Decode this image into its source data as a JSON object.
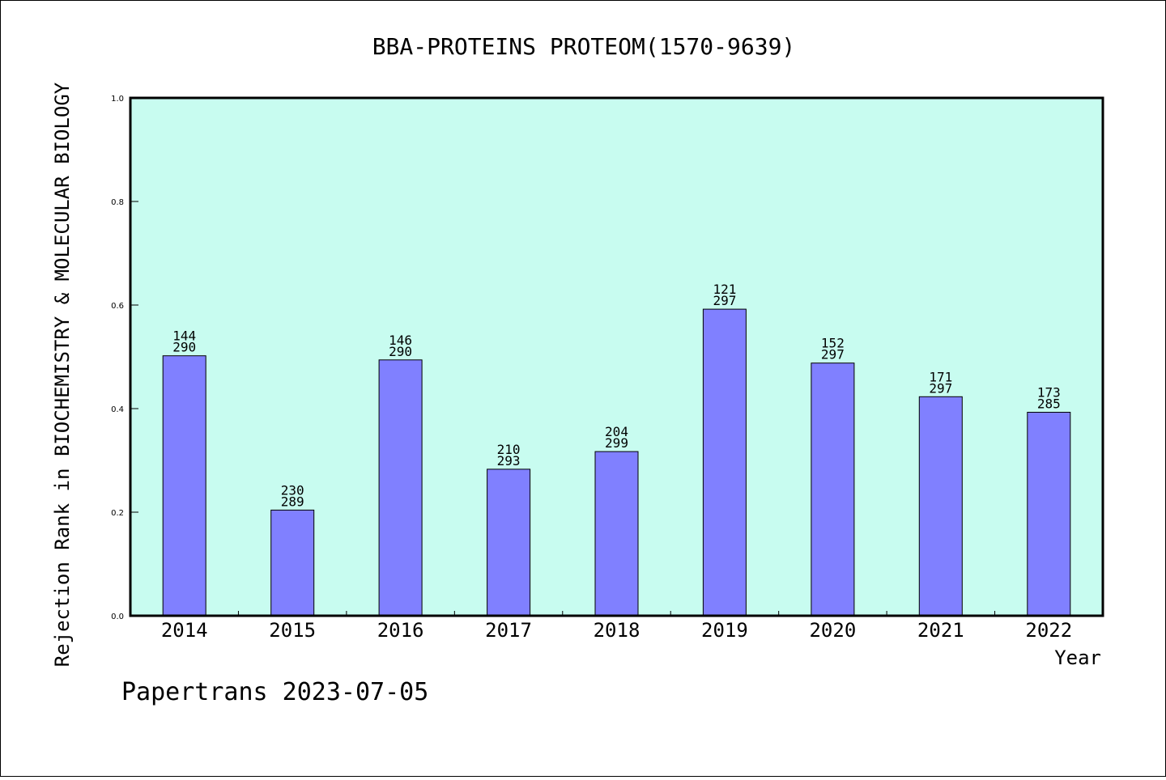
{
  "chart_data": {
    "type": "bar",
    "title": "BBA-PROTEINS PROTEOM(1570-9639)",
    "xlabel": "Year",
    "ylabel": "Rejection Rank in BIOCHEMISTRY & MOLECULAR BIOLOGY",
    "ylim": [
      0.0,
      1.0
    ],
    "yticks": [
      "0.0",
      "0.2",
      "0.4",
      "0.6",
      "0.8",
      "1.0"
    ],
    "categories": [
      "2014",
      "2015",
      "2016",
      "2017",
      "2018",
      "2019",
      "2020",
      "2021",
      "2022"
    ],
    "values": [
      0.502,
      0.204,
      0.494,
      0.283,
      0.317,
      0.592,
      0.488,
      0.423,
      0.393
    ],
    "rank_labels": [
      "144",
      "230",
      "146",
      "210",
      "204",
      "121",
      "152",
      "171",
      "173"
    ],
    "total_labels": [
      "290",
      "289",
      "290",
      "293",
      "299",
      "297",
      "297",
      "297",
      "285"
    ],
    "grid": false,
    "colors": {
      "plot_background": "#c8fcf0",
      "bar_fill": "#8080ff",
      "bar_stroke": "#000000"
    }
  },
  "footer": {
    "text": "Papertrans 2023-07-05"
  }
}
